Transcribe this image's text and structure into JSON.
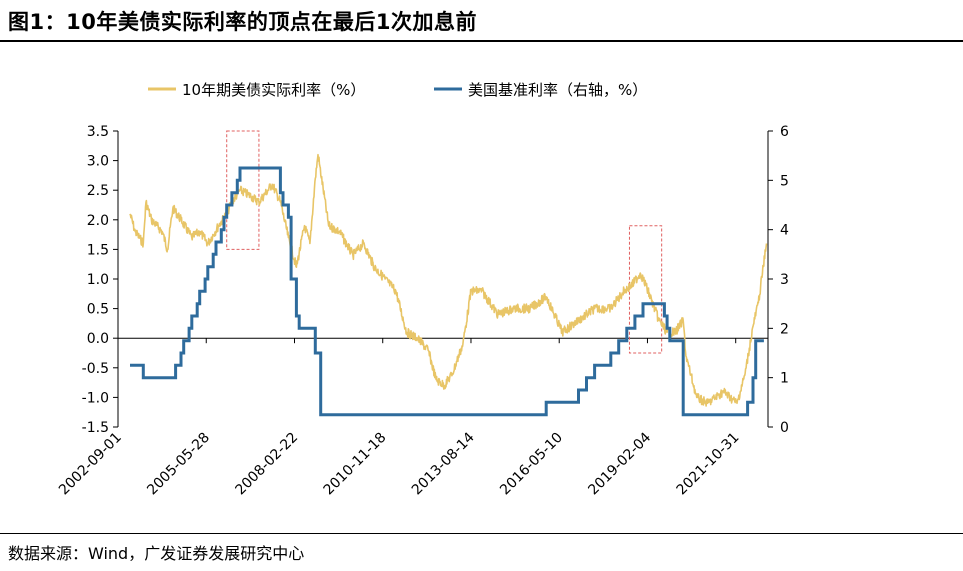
{
  "page": {
    "title": "图1：10年美债实际利率的顶点在最后1次加息前",
    "source": "数据来源：Wind，广发证券发展研究中心"
  },
  "colors": {
    "real_rate": "#E8C567",
    "fed_rate": "#2E6B9C",
    "highlight_box": "#E06060"
  },
  "chart_data": {
    "type": "line",
    "x_ticks": [
      "2002-09-01",
      "2005-05-28",
      "2008-02-22",
      "2010-11-18",
      "2013-08-14",
      "2016-05-10",
      "2019-02-04",
      "2021-10-31"
    ],
    "x_range": [
      "2002-09-01",
      "2022-11-01"
    ],
    "y_left": {
      "range": [
        -1.5,
        3.5
      ],
      "ticks": [
        "3.5",
        "3.0",
        "2.5",
        "2.0",
        "1.5",
        "1.0",
        "0.5",
        "0.0",
        "-0.5",
        "-1.0",
        "-1.5"
      ]
    },
    "y_right": {
      "range": [
        0,
        6
      ],
      "ticks": [
        "6",
        "5",
        "4",
        "3",
        "2",
        "1",
        "0"
      ]
    },
    "legend_position": "top",
    "grid": false,
    "series": [
      {
        "name": "10年期美债实际利率（%）",
        "axis": "left",
        "x": [
          "2003-01",
          "2003-03",
          "2003-06",
          "2003-07",
          "2003-09",
          "2004-01",
          "2004-03",
          "2004-05",
          "2004-08",
          "2004-12",
          "2005-03",
          "2005-06",
          "2005-10",
          "2006-01",
          "2006-03",
          "2006-06",
          "2006-10",
          "2007-01",
          "2007-06",
          "2007-09",
          "2007-12",
          "2008-03",
          "2008-06",
          "2008-08",
          "2008-10",
          "2008-11",
          "2009-03",
          "2009-07",
          "2009-12",
          "2010-04",
          "2010-08",
          "2010-12",
          "2011-04",
          "2011-08",
          "2011-12",
          "2012-04",
          "2012-07",
          "2012-10",
          "2013-01",
          "2013-05",
          "2013-08",
          "2013-12",
          "2014-06",
          "2014-12",
          "2015-06",
          "2015-12",
          "2016-06",
          "2016-12",
          "2017-06",
          "2017-12",
          "2018-05",
          "2018-08",
          "2018-11",
          "2019-01",
          "2019-06",
          "2019-09",
          "2019-12",
          "2020-03",
          "2020-04",
          "2020-08",
          "2020-12",
          "2021-06",
          "2021-11",
          "2022-02",
          "2022-05",
          "2022-07",
          "2022-10"
        ],
        "values": [
          2.1,
          1.8,
          1.6,
          2.3,
          2.0,
          1.8,
          1.5,
          2.2,
          2.0,
          1.7,
          1.8,
          1.6,
          1.9,
          2.1,
          2.3,
          2.5,
          2.4,
          2.3,
          2.6,
          2.3,
          1.7,
          1.2,
          1.9,
          1.6,
          2.7,
          3.1,
          1.9,
          1.8,
          1.4,
          1.6,
          1.2,
          1.0,
          0.8,
          0.1,
          0.0,
          -0.2,
          -0.7,
          -0.8,
          -0.6,
          -0.1,
          0.8,
          0.8,
          0.4,
          0.5,
          0.5,
          0.7,
          0.1,
          0.3,
          0.5,
          0.5,
          0.8,
          0.9,
          1.1,
          0.9,
          0.3,
          0.1,
          0.1,
          0.3,
          -0.3,
          -1.0,
          -1.1,
          -0.9,
          -1.1,
          -0.6,
          0.2,
          0.6,
          1.6
        ]
      },
      {
        "name": "美国基准利率（右轴，%）",
        "axis": "right",
        "x": [
          "2003-01",
          "2003-06",
          "2004-06",
          "2004-08",
          "2004-09",
          "2004-11",
          "2004-12",
          "2005-02",
          "2005-03",
          "2005-05",
          "2005-06",
          "2005-08",
          "2005-09",
          "2005-11",
          "2005-12",
          "2006-01",
          "2006-03",
          "2006-05",
          "2006-06",
          "2007-09",
          "2007-10",
          "2007-12",
          "2008-01",
          "2008-03",
          "2008-04",
          "2008-10",
          "2008-12",
          "2015-12",
          "2016-12",
          "2017-03",
          "2017-06",
          "2017-12",
          "2018-03",
          "2018-06",
          "2018-09",
          "2018-12",
          "2019-08",
          "2019-09",
          "2019-10",
          "2020-03",
          "2022-03",
          "2022-05",
          "2022-06"
        ],
        "values": [
          1.25,
          1.0,
          1.25,
          1.5,
          1.75,
          2.0,
          2.25,
          2.5,
          2.75,
          3.0,
          3.25,
          3.5,
          3.75,
          4.0,
          4.25,
          4.5,
          4.75,
          5.0,
          5.25,
          4.75,
          4.5,
          4.25,
          3.0,
          2.25,
          2.0,
          1.5,
          0.25,
          0.5,
          0.75,
          1.0,
          1.25,
          1.5,
          1.75,
          2.0,
          2.25,
          2.5,
          2.25,
          2.0,
          1.75,
          0.25,
          0.5,
          1.0,
          1.75
        ]
      }
    ],
    "annotations": [
      {
        "type": "box",
        "x_from": "2006-01",
        "x_to": "2007-01",
        "y_from": 1.5,
        "y_to": 3.5,
        "axis": "left"
      },
      {
        "type": "box",
        "x_from": "2018-07",
        "x_to": "2019-07",
        "y_from": -0.25,
        "y_to": 1.9,
        "axis": "left"
      }
    ]
  }
}
